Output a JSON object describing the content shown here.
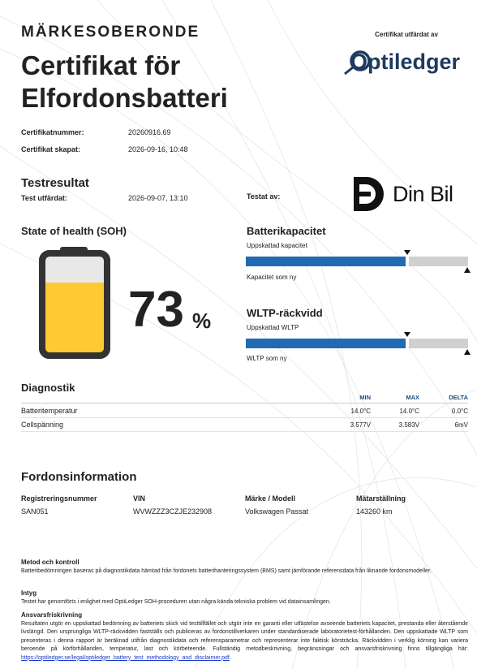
{
  "header": {
    "brand_line": "MÄRKESOBERONDE",
    "title_line1": "Certifikat för",
    "title_line2": "Elfordonsbatteri",
    "issued_by": "Certifikat utfärdat av",
    "issuer_logo": "Optiledger"
  },
  "certificate": {
    "number_label": "Certifikatnummer:",
    "number": "20260916.69",
    "created_label": "Certifikat skapat:",
    "created": "2026-09-16, 10:48"
  },
  "test": {
    "heading": "Testresultat",
    "issued_label": "Test utfärdat:",
    "issued": "2026-09-07, 13:10",
    "tested_by_label": "Testat av:",
    "tester_logo": "Din Bil"
  },
  "soh": {
    "heading": "State of health (SOH)",
    "value": "73",
    "unit": "%"
  },
  "capacity": {
    "heading": "Batterikapacitet",
    "estimated_label": "Uppskattad kapacitet",
    "new_label": "Kapacitet som ny"
  },
  "wltp": {
    "heading": "WLTP-räckvidd",
    "estimated_label": "Uppskattad WLTP",
    "new_label": "WLTP som ny"
  },
  "diagnostics": {
    "heading": "Diagnostik",
    "columns": [
      "MIN",
      "MAX",
      "DELTA"
    ],
    "rows": [
      [
        "Batteritemperatur",
        "14.0°C",
        "14.0°C",
        "0.0°C"
      ],
      [
        "Cellspänning",
        "3.577V",
        "3.583V",
        "6mV"
      ]
    ]
  },
  "vehicle": {
    "heading": "Fordonsinformation",
    "fields": [
      {
        "label": "Registreringsnummer",
        "value": "SAN051"
      },
      {
        "label": "VIN",
        "value": "WVWZZZ3CZJE232908"
      },
      {
        "label": "Märke / Modell",
        "value": "Volkswagen Passat"
      },
      {
        "label": "Mätarställning",
        "value": "143260 km"
      }
    ]
  },
  "footer": {
    "method_heading": "Metod och kontroll",
    "method_text": "Batteribedömningen baseras på diagnostikdata hämtad från fordonets batterihanteringssystem (BMS) samt jämförande referensdata från liknande fordonsmodeller.",
    "cert_heading": "Intyg",
    "cert_text": "Testet har genomförts i enlighet med OptiLedger SOH-proceduren utan några kända tekniska problem vid datainsamlingen.",
    "disclaimer_heading": "Ansvarsfriskrivning",
    "disclaimer_text": "Resultaten utgör en uppskattad bedömning av batteriets skick vid testtillfället och utgör inte en garanti eller utfästelse avseende batteriets kapacitet, prestanda eller återstående livslängd. Den ursprungliga WLTP-räckvidden fastställs och publiceras av fordonstillverkaren under standardiserade laboratorietest-förhållanden. Den uppskattade WLTP som presenteras i denna rapport är beräknad utifrån diagnostikdata och referensparametrar och representerar inte faktisk körsträcka. Räckvidden i verklig körning kan variera beroende på körförhållanden, temperatur, last och körbeteende. Fullständig metodbeskrivning, begränsningar och ansvarsfriskrivning finns tillgängliga här:",
    "disclaimer_link": "https://optiledger.se/legal/optiledger_battery_test_methodology_and_disclaimer.pdf",
    "disclaimer_end": "."
  }
}
